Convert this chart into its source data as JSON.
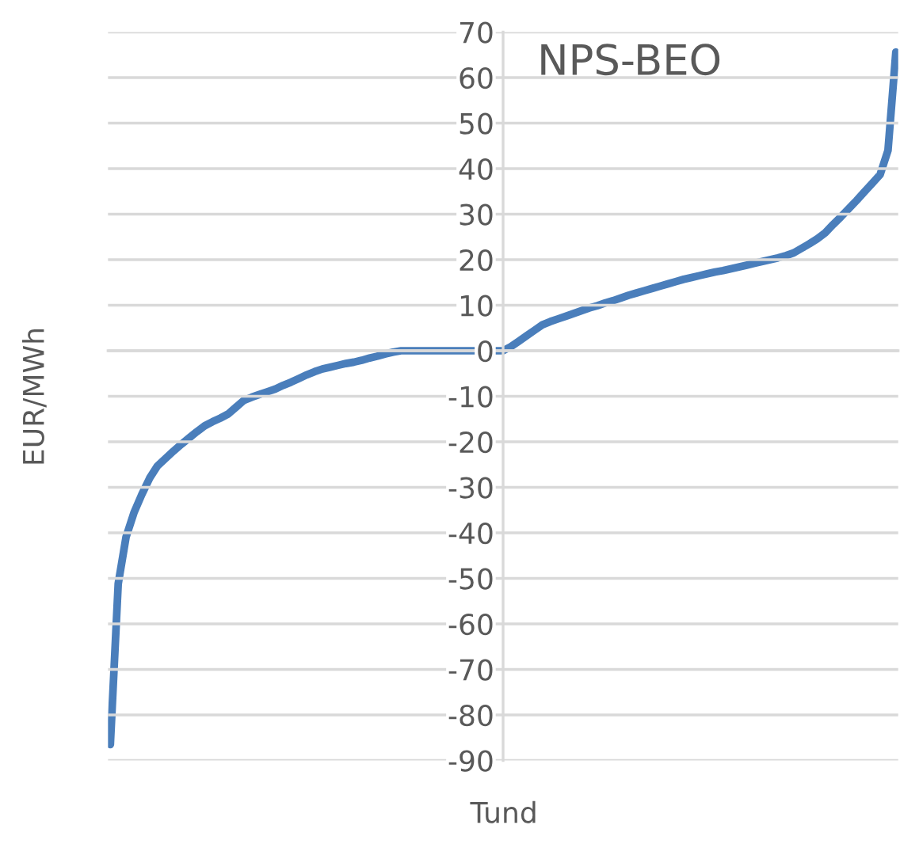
{
  "chart_data": {
    "type": "line",
    "title": "NPS-BEO",
    "xlabel": "Tund",
    "ylabel": "EUR/MWh",
    "categories": [
      null,
      null,
      null,
      null,
      null,
      null,
      null,
      null,
      null,
      null,
      null,
      null,
      null,
      null,
      null,
      null,
      null,
      null,
      null,
      null,
      null,
      null,
      null,
      null,
      null,
      null,
      null,
      null,
      null,
      null,
      null,
      null,
      null,
      null,
      null,
      null,
      null,
      null,
      null,
      null,
      null,
      null,
      null,
      null,
      null,
      null,
      null,
      null,
      null,
      null,
      null,
      null,
      null,
      null,
      null,
      null,
      null,
      null,
      null,
      null,
      null,
      null,
      null,
      null,
      null,
      null,
      null,
      null,
      null,
      null,
      null,
      null,
      null,
      null,
      null,
      null,
      null,
      null,
      null,
      null,
      null,
      null,
      null,
      null,
      null,
      null,
      null,
      null,
      null,
      null,
      null,
      null,
      null,
      null,
      null,
      null,
      null,
      null,
      null,
      null,
      null
    ],
    "series": [
      {
        "color": "#4a7ebb",
        "values": [
          -86.5,
          -51.2,
          -40.9,
          -35.6,
          -31.6,
          -28.0,
          -25.3,
          -23.7,
          -22.1,
          -20.6,
          -19.2,
          -17.8,
          -16.5,
          -15.6,
          -14.8,
          -13.9,
          -12.4,
          -10.9,
          -10.2,
          -9.6,
          -9.0,
          -8.4,
          -7.6,
          -6.9,
          -6.1,
          -5.3,
          -4.6,
          -4.0,
          -3.6,
          -3.2,
          -2.8,
          -2.5,
          -2.1,
          -1.6,
          -1.2,
          -0.7,
          -0.3,
          0,
          0,
          0,
          0,
          0,
          0,
          0,
          0,
          0,
          0,
          0,
          0,
          0,
          0,
          0.9,
          2.1,
          3.3,
          4.5,
          5.7,
          6.4,
          7.0,
          7.6,
          8.2,
          8.8,
          9.4,
          9.9,
          10.5,
          11.0,
          11.6,
          12.2,
          12.7,
          13.2,
          13.7,
          14.2,
          14.7,
          15.2,
          15.7,
          16.1,
          16.5,
          16.9,
          17.3,
          17.6,
          18.0,
          18.4,
          18.8,
          19.2,
          19.6,
          20.0,
          20.4,
          20.9,
          21.5,
          22.5,
          23.5,
          24.6,
          25.9,
          27.7,
          29.4,
          31.2,
          33.0,
          34.9,
          36.8,
          38.7,
          44.0,
          65.6
        ]
      }
    ],
    "ylim": [
      -90,
      70
    ],
    "yticks": [
      -90,
      -80,
      -70,
      -60,
      -50,
      -40,
      -30,
      -20,
      -10,
      0,
      10,
      20,
      30,
      40,
      50,
      60,
      70
    ],
    "grid": "y",
    "marker": "none",
    "line_style": "solid"
  }
}
